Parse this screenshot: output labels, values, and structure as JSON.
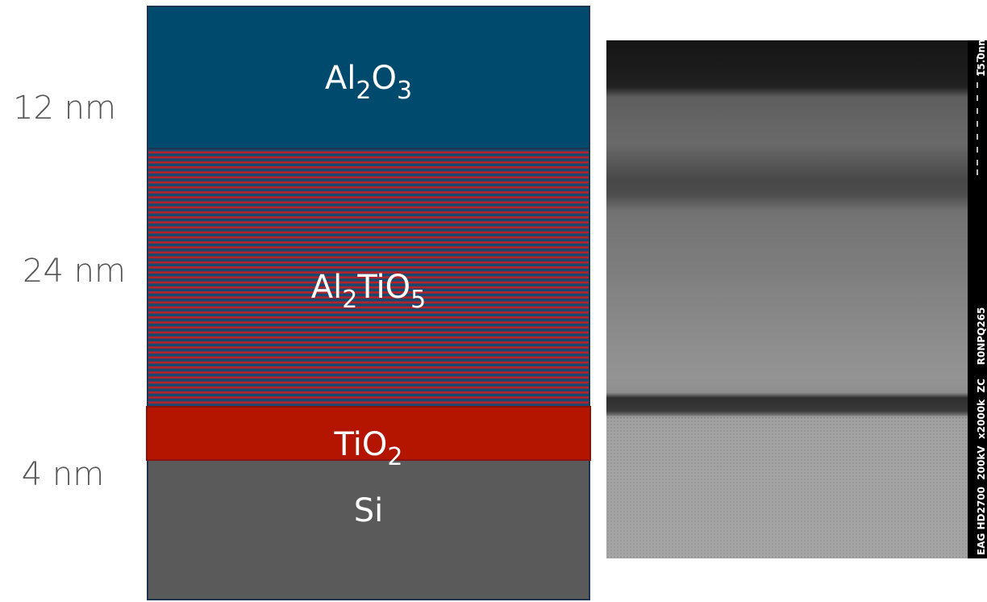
{
  "layers": [
    {
      "label_parts": [
        "Al",
        "2",
        "O",
        "3"
      ],
      "thickness": "12 nm"
    },
    {
      "label_parts": [
        "Al",
        "2",
        "TiO",
        "5"
      ],
      "thickness": "24 nm"
    },
    {
      "label_parts": [
        "TiO",
        "2"
      ],
      "thickness": "4 nm"
    },
    {
      "label_parts": [
        "Si"
      ]
    }
  ],
  "tem_image": {
    "scale_label": "15.0nm",
    "caption": "EAG HD2700  200kV  x2000k  ZC    R0NPQ265"
  }
}
